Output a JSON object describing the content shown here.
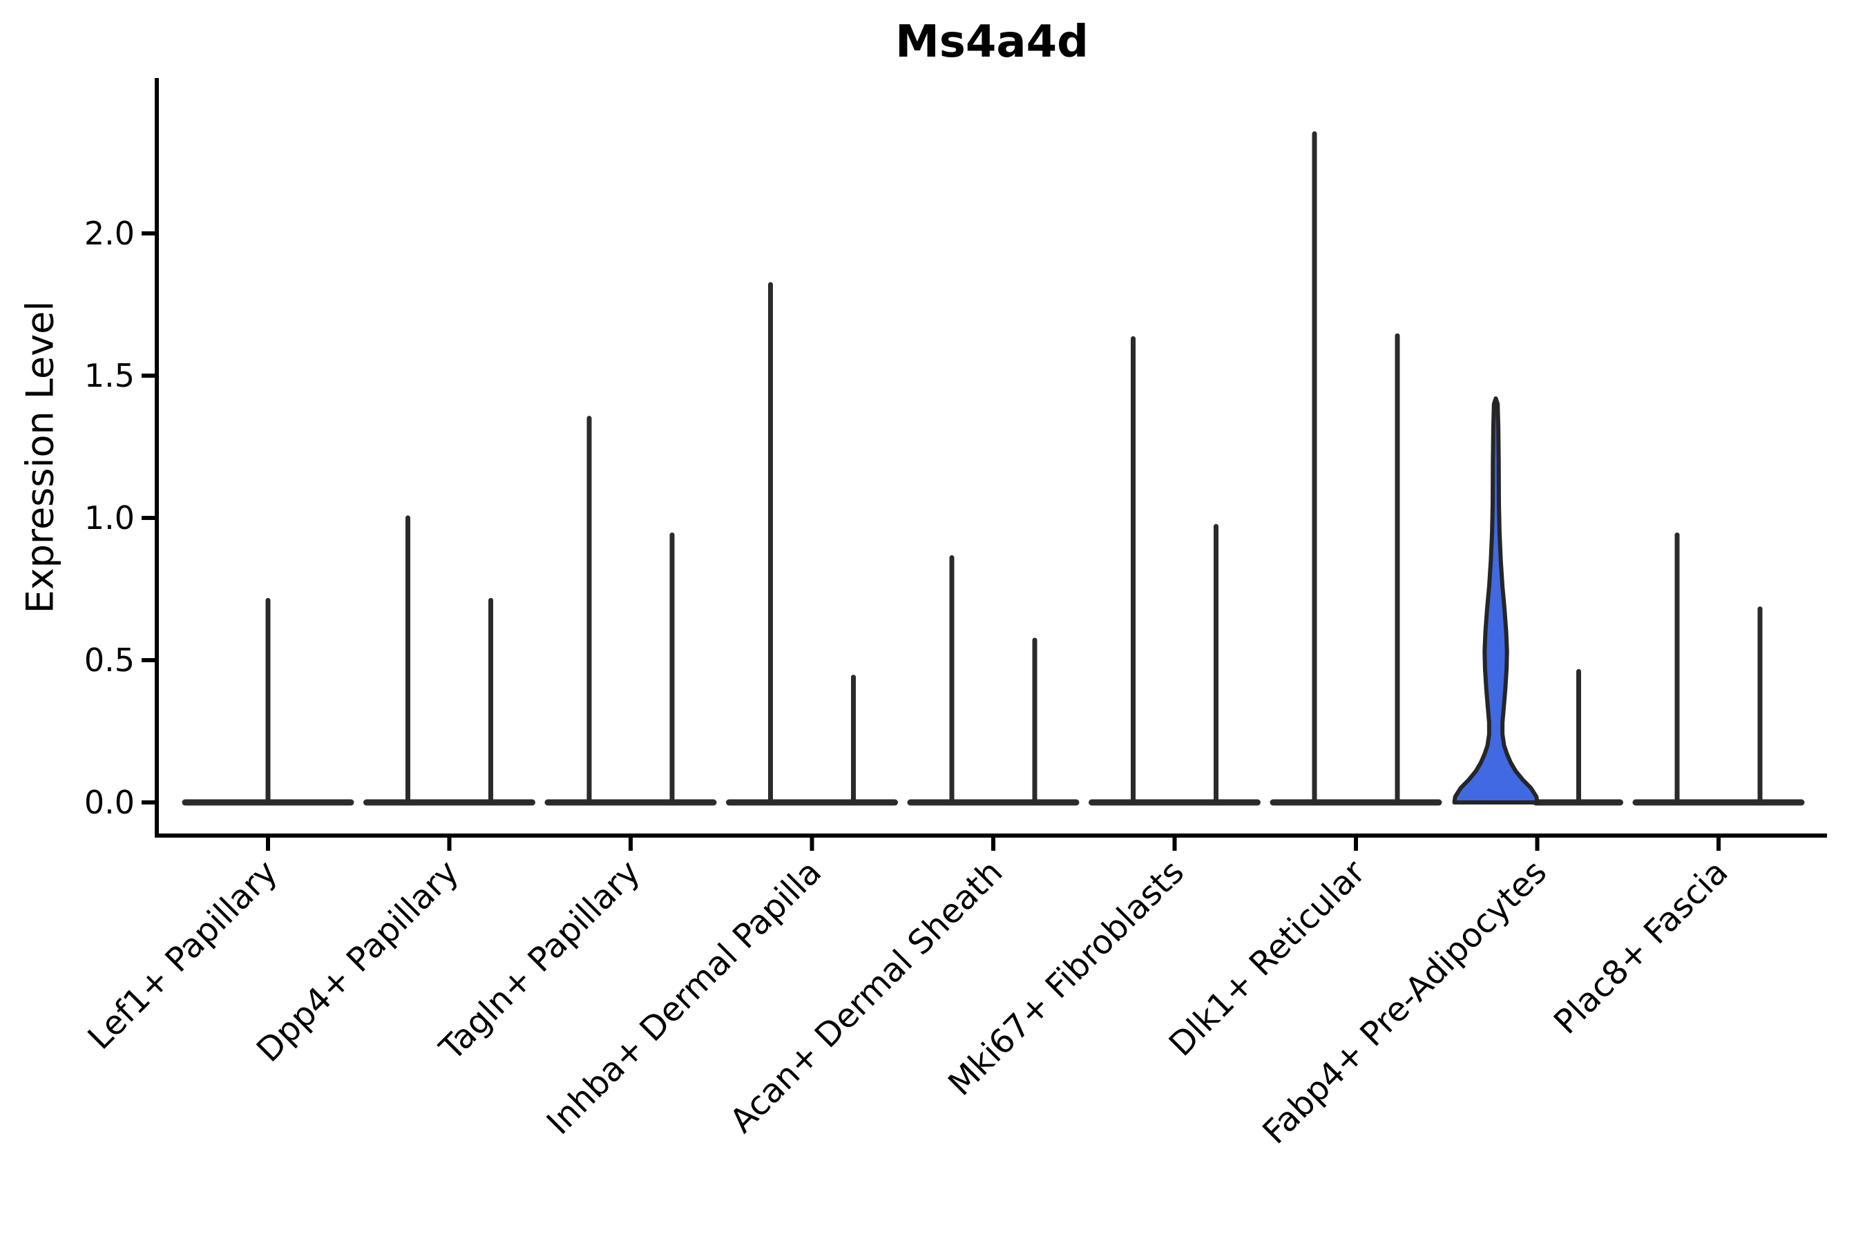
{
  "chart_data": {
    "type": "violin",
    "title": "Ms4a4d",
    "ylabel": "Expression Level",
    "xlabel": "",
    "ylim": [
      0,
      2.55
    ],
    "ytick_values": [
      0.0,
      0.5,
      1.0,
      1.5,
      2.0
    ],
    "ytick_labels": [
      "0.0",
      "0.5",
      "1.0",
      "1.5",
      "2.0"
    ],
    "legend": "none",
    "grid": false,
    "categories": [
      "Lef1+ Papillary",
      "Dpp4+ Papillary",
      "Tagln+ Papillary",
      "Inhba+ Dermal Papilla",
      "Acan+ Dermal Sheath",
      "Mki67+ Fibroblasts",
      "Dlk1+ Reticular",
      "Fabp4+ Pre-Adipocytes",
      "Plac8+ Fascia"
    ],
    "violins_per_category": 2,
    "violins": [
      {
        "category": "Lef1+ Papillary",
        "slot": "full",
        "max_expression": 0.72,
        "style": "spike"
      },
      {
        "category": "Dpp4+ Papillary",
        "slot": "left",
        "max_expression": 1.01,
        "style": "spike"
      },
      {
        "category": "Dpp4+ Papillary",
        "slot": "right",
        "max_expression": 0.72,
        "style": "spike"
      },
      {
        "category": "Tagln+ Papillary",
        "slot": "left",
        "max_expression": 1.36,
        "style": "spike"
      },
      {
        "category": "Tagln+ Papillary",
        "slot": "right",
        "max_expression": 0.95,
        "style": "spike"
      },
      {
        "category": "Inhba+ Dermal Papilla",
        "slot": "left",
        "max_expression": 1.83,
        "style": "spike"
      },
      {
        "category": "Inhba+ Dermal Papilla",
        "slot": "right",
        "max_expression": 0.45,
        "style": "spike"
      },
      {
        "category": "Acan+ Dermal Sheath",
        "slot": "left",
        "max_expression": 0.87,
        "style": "spike"
      },
      {
        "category": "Acan+ Dermal Sheath",
        "slot": "right",
        "max_expression": 0.58,
        "style": "spike"
      },
      {
        "category": "Mki67+ Fibroblasts",
        "slot": "left",
        "max_expression": 1.64,
        "style": "spike"
      },
      {
        "category": "Mki67+ Fibroblasts",
        "slot": "right",
        "max_expression": 0.98,
        "style": "spike"
      },
      {
        "category": "Dlk1+ Reticular",
        "slot": "left",
        "max_expression": 2.36,
        "style": "spike"
      },
      {
        "category": "Dlk1+ Reticular",
        "slot": "right",
        "max_expression": 1.65,
        "style": "spike"
      },
      {
        "category": "Fabp4+ Pre-Adipocytes",
        "slot": "left",
        "max_expression": 1.42,
        "style": "filled",
        "fill_color": "#4169E1",
        "profile": [
          [
            0.0,
            1.0
          ],
          [
            0.02,
            0.98
          ],
          [
            0.05,
            0.85
          ],
          [
            0.08,
            0.65
          ],
          [
            0.11,
            0.48
          ],
          [
            0.14,
            0.36
          ],
          [
            0.17,
            0.27
          ],
          [
            0.2,
            0.2
          ],
          [
            0.24,
            0.16
          ],
          [
            0.28,
            0.16
          ],
          [
            0.33,
            0.19
          ],
          [
            0.4,
            0.23
          ],
          [
            0.47,
            0.26
          ],
          [
            0.53,
            0.27
          ],
          [
            0.6,
            0.25
          ],
          [
            0.68,
            0.21
          ],
          [
            0.76,
            0.16
          ],
          [
            0.85,
            0.12
          ],
          [
            0.95,
            0.09
          ],
          [
            1.05,
            0.075
          ],
          [
            1.2,
            0.07
          ],
          [
            1.32,
            0.06
          ],
          [
            1.4,
            0.045
          ],
          [
            1.42,
            0.0
          ]
        ]
      },
      {
        "category": "Fabp4+ Pre-Adipocytes",
        "slot": "right",
        "max_expression": 0.47,
        "style": "spike"
      },
      {
        "category": "Plac8+ Fascia",
        "slot": "left",
        "max_expression": 0.95,
        "style": "spike"
      },
      {
        "category": "Plac8+ Fascia",
        "slot": "right",
        "max_expression": 0.69,
        "style": "spike"
      }
    ],
    "colors": {
      "line": "#2b2b2b",
      "highlight_fill": "#4169E1",
      "background": "#ffffff",
      "text": "#000000"
    }
  }
}
